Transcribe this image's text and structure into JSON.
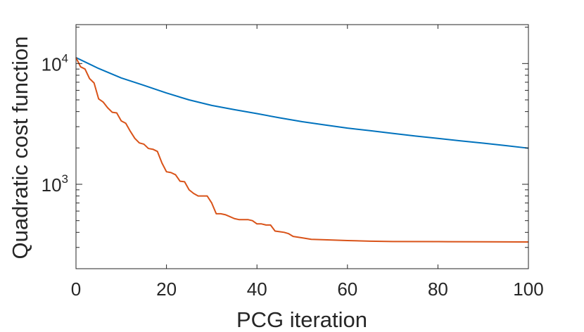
{
  "chart_data": {
    "type": "line",
    "title": "",
    "xlabel": "PCG iteration",
    "ylabel": "Quadratic cost function",
    "xlim": [
      0,
      100
    ],
    "ylim": [
      200,
      21000
    ],
    "yscale": "log",
    "grid": false,
    "x_ticks": [
      {
        "value": 0,
        "label": "0"
      },
      {
        "value": 20,
        "label": "20"
      },
      {
        "value": 40,
        "label": "40"
      },
      {
        "value": 60,
        "label": "60"
      },
      {
        "value": 80,
        "label": "80"
      },
      {
        "value": 100,
        "label": "100"
      }
    ],
    "y_ticks": [
      {
        "value": 1000,
        "base": "10",
        "exp": "3"
      },
      {
        "value": 10000,
        "base": "10",
        "exp": "4"
      }
    ],
    "series": [
      {
        "name": "series-blue",
        "color": "#0072BD",
        "x": [
          0,
          5,
          10,
          15,
          20,
          25,
          30,
          35,
          40,
          45,
          50,
          55,
          60,
          65,
          70,
          75,
          80,
          85,
          90,
          95,
          100
        ],
        "y": [
          11200,
          9100,
          7600,
          6600,
          5700,
          5000,
          4500,
          4150,
          3850,
          3550,
          3300,
          3100,
          2920,
          2780,
          2640,
          2510,
          2400,
          2290,
          2190,
          2090,
          1990
        ]
      },
      {
        "name": "series-orange",
        "color": "#D95319",
        "x": [
          0,
          1,
          2,
          3,
          4,
          5,
          6,
          7,
          8,
          9,
          10,
          11,
          12,
          13,
          14,
          15,
          16,
          17,
          18,
          19,
          20,
          21,
          22,
          23,
          24,
          25,
          26,
          27,
          28,
          29,
          30,
          31,
          32,
          33,
          34,
          35,
          36,
          37,
          38,
          39,
          40,
          41,
          42,
          43,
          44,
          45,
          46,
          47,
          48,
          49,
          50,
          52,
          55,
          60,
          65,
          70,
          80,
          90,
          100
        ],
        "y": [
          11200,
          9400,
          9000,
          7500,
          6900,
          5100,
          4800,
          4300,
          3950,
          3900,
          3350,
          3200,
          2750,
          2400,
          2200,
          2150,
          1980,
          1950,
          1870,
          1500,
          1270,
          1250,
          1200,
          1060,
          1050,
          900,
          840,
          800,
          800,
          800,
          700,
          570,
          570,
          560,
          540,
          520,
          510,
          510,
          510,
          500,
          470,
          470,
          460,
          460,
          410,
          405,
          400,
          390,
          370,
          365,
          360,
          350,
          347,
          342,
          338,
          336,
          335,
          334,
          333
        ]
      }
    ]
  }
}
